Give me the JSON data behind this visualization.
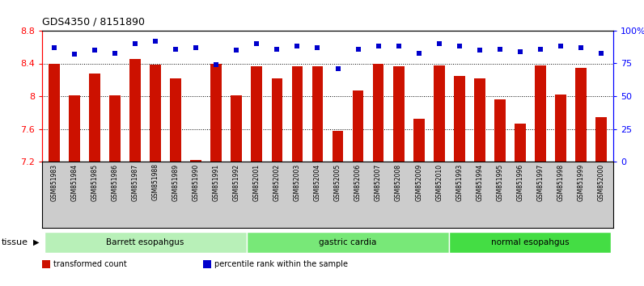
{
  "title": "GDS4350 / 8151890",
  "samples": [
    "GSM851983",
    "GSM851984",
    "GSM851985",
    "GSM851986",
    "GSM851987",
    "GSM851988",
    "GSM851989",
    "GSM851990",
    "GSM851991",
    "GSM851992",
    "GSM852001",
    "GSM852002",
    "GSM852003",
    "GSM852004",
    "GSM852005",
    "GSM852006",
    "GSM852007",
    "GSM852008",
    "GSM852009",
    "GSM852010",
    "GSM851993",
    "GSM851994",
    "GSM851995",
    "GSM851996",
    "GSM851997",
    "GSM851998",
    "GSM851999",
    "GSM852000"
  ],
  "bar_values": [
    8.4,
    8.01,
    8.28,
    8.01,
    8.45,
    8.39,
    8.22,
    7.22,
    8.4,
    8.01,
    8.37,
    8.22,
    8.37,
    8.37,
    7.58,
    8.07,
    8.4,
    8.37,
    7.72,
    8.38,
    8.25,
    8.22,
    7.96,
    7.66,
    8.38,
    8.02,
    8.35,
    7.74
  ],
  "percentile_values": [
    87,
    82,
    85,
    83,
    90,
    92,
    86,
    87,
    74,
    85,
    90,
    86,
    88,
    87,
    71,
    86,
    88,
    88,
    83,
    90,
    88,
    85,
    86,
    84,
    86,
    88,
    87,
    83
  ],
  "groups": [
    {
      "label": "Barrett esopahgus",
      "start": 0,
      "end": 10,
      "color": "#b8f0b8"
    },
    {
      "label": "gastric cardia",
      "start": 10,
      "end": 20,
      "color": "#78e878"
    },
    {
      "label": "normal esopahgus",
      "start": 20,
      "end": 28,
      "color": "#44dd44"
    }
  ],
  "ylim_left": [
    7.2,
    8.8
  ],
  "ylim_right": [
    0,
    100
  ],
  "bar_color": "#cc1100",
  "dot_color": "#0000cc",
  "yticks_left": [
    7.2,
    7.6,
    8.0,
    8.4,
    8.8
  ],
  "ytick_labels_left": [
    "7.2",
    "7.6",
    "8",
    "8.4",
    "8.8"
  ],
  "yticks_right": [
    0,
    25,
    50,
    75,
    100
  ],
  "ytick_labels_right": [
    "0",
    "25",
    "50",
    "75",
    "100%"
  ],
  "xlabel_bg": "#cccccc",
  "legend_items": [
    {
      "color": "#cc1100",
      "label": "transformed count"
    },
    {
      "color": "#0000cc",
      "label": "percentile rank within the sample"
    }
  ],
  "tissue_label": "tissue",
  "figsize": [
    7.96,
    3.54
  ],
  "dpi": 100
}
